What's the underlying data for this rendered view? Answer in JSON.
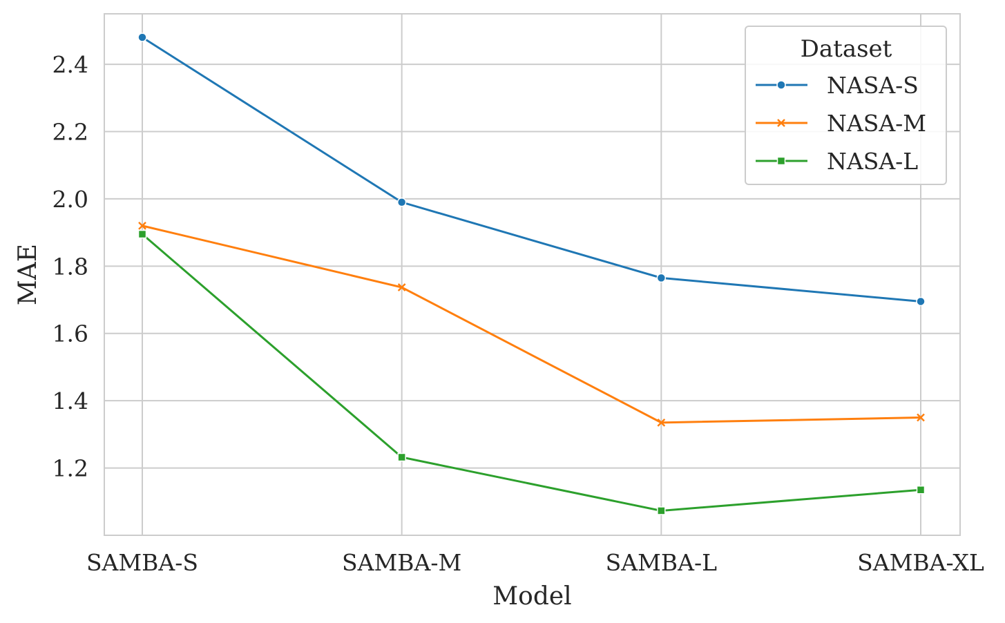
{
  "chart_data": {
    "type": "line",
    "xlabel": "Model",
    "ylabel": "MAE",
    "categories": [
      "SAMBA-S",
      "SAMBA-M",
      "SAMBA-L",
      "SAMBA-XL"
    ],
    "ylim": [
      1.0,
      2.55
    ],
    "yticks": [
      1.2,
      1.4,
      1.6,
      1.8,
      2.0,
      2.2,
      2.4
    ],
    "ytick_labels": [
      "1.2",
      "1.4",
      "1.6",
      "1.8",
      "2.0",
      "2.2",
      "2.4"
    ],
    "grid": true,
    "legend": {
      "title": "Dataset",
      "placement": "top-right"
    },
    "series": [
      {
        "name": "NASA-S",
        "values": [
          2.48,
          1.99,
          1.765,
          1.695
        ],
        "color": "#1f77b4",
        "marker": "circle"
      },
      {
        "name": "NASA-M",
        "values": [
          1.92,
          1.737,
          1.335,
          1.35
        ],
        "color": "#ff7f0e",
        "marker": "x"
      },
      {
        "name": "NASA-L",
        "values": [
          1.895,
          1.232,
          1.073,
          1.135
        ],
        "color": "#2ca02c",
        "marker": "square"
      }
    ]
  }
}
